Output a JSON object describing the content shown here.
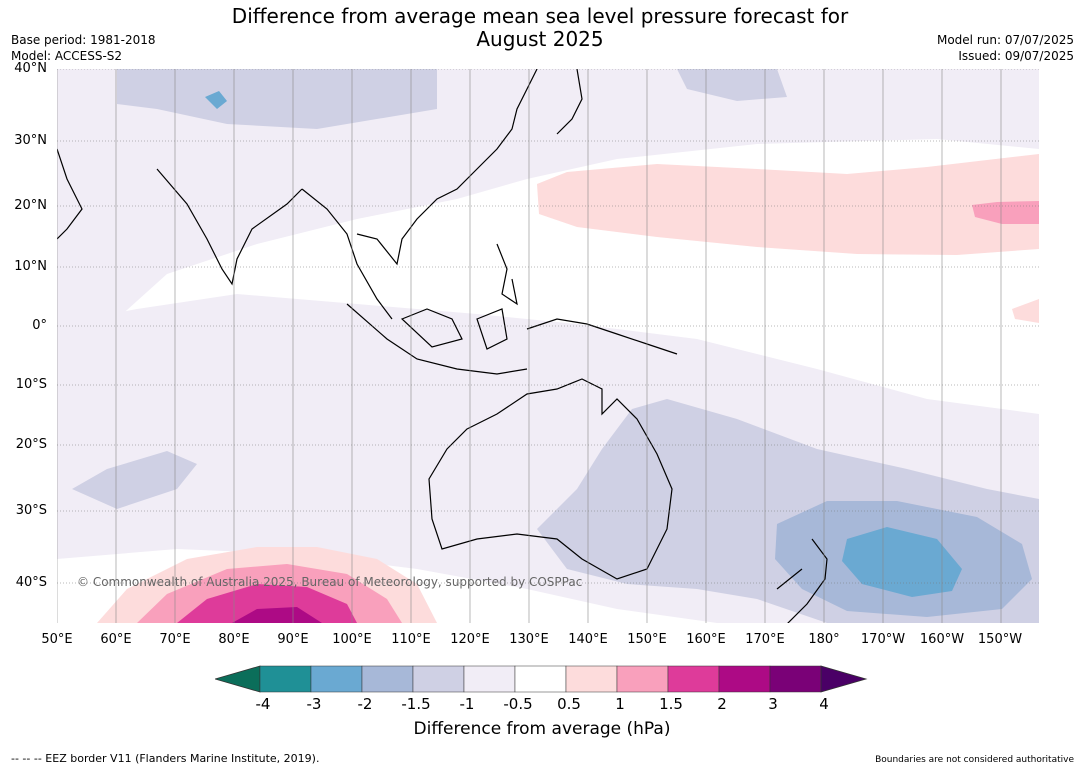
{
  "title_line1": "Difference from average mean sea level pressure forecast for",
  "title_line2": "August 2025",
  "base_period": "Base period: 1981-2018",
  "model": "Model: ACCESS-S2",
  "model_run": "Model run: 07/07/2025",
  "issued": "Issued: 09/07/2025",
  "copyright": "© Commonwealth of Australia 2025, Bureau of Meteorology, supported by COSPPac",
  "latitude_labels": [
    "40°N",
    "30°N",
    "20°N",
    "10°N",
    "0°",
    "10°S",
    "20°S",
    "30°S",
    "40°S"
  ],
  "longitude_labels": [
    "50°E",
    "60°E",
    "70°E",
    "80°E",
    "90°E",
    "100°E",
    "110°E",
    "120°E",
    "130°E",
    "140°E",
    "150°E",
    "160°E",
    "170°E",
    "180°",
    "170°W",
    "160°W",
    "150°W"
  ],
  "colorbar": {
    "ticks": [
      "-4",
      "-3",
      "-2",
      "-1.5",
      "-1",
      "-0.5",
      "0.5",
      "1",
      "1.5",
      "2",
      "3",
      "4"
    ],
    "colors": [
      "#0b6e5a",
      "#1f9096",
      "#6aa9d2",
      "#a7b8d8",
      "#cfd0e4",
      "#f1edf6",
      "#ffffff",
      "#fddcdc",
      "#f9a0bc",
      "#de3b9a",
      "#ad0a85",
      "#7a0177",
      "#4a0066"
    ],
    "label": "Difference from average (hPa)"
  },
  "footer_left": "--  --  -- EEZ border V11 (Flanders Marine Institute, 2019).",
  "footer_right": "Boundaries are not considered authoritative"
}
